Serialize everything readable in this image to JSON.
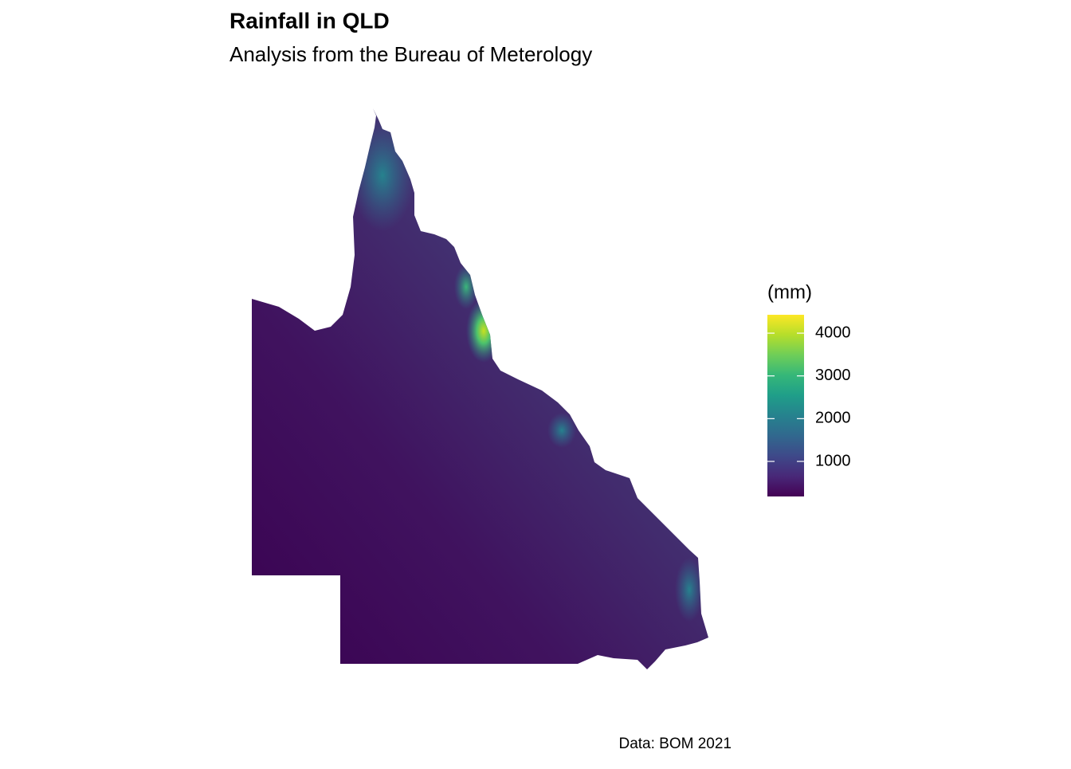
{
  "title": "Rainfall in QLD",
  "subtitle": "Analysis from the Bureau of Meterology",
  "caption": "Data: BOM 2021",
  "legend": {
    "title": "(mm)",
    "limits": [
      180,
      4430
    ],
    "ticks": [
      1000,
      2000,
      3000,
      4000
    ],
    "colors": [
      "#440154",
      "#482878",
      "#3e4989",
      "#31688e",
      "#26828e",
      "#1f9e89",
      "#35b779",
      "#6ece58",
      "#b5de2b",
      "#fde725"
    ]
  }
}
